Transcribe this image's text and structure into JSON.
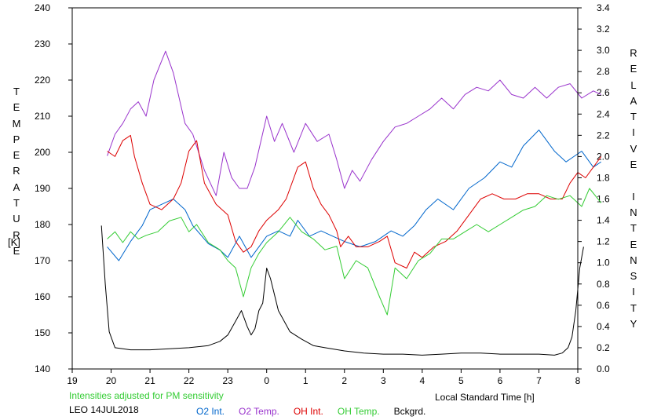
{
  "chart_data": {
    "type": "line",
    "x_axis": {
      "label": "Local Standard Time [h]",
      "range": [
        19,
        32
      ],
      "ticks": [
        19,
        20,
        21,
        22,
        23,
        24,
        25,
        26,
        27,
        28,
        29,
        30,
        31,
        32
      ],
      "tick_labels": [
        "19",
        "20",
        "21",
        "22",
        "23",
        "0",
        "1",
        "2",
        "3",
        "4",
        "5",
        "6",
        "7",
        "8"
      ]
    },
    "y_left": {
      "label_letters": [
        "T",
        "E",
        "M",
        "P",
        "E",
        "R",
        "A",
        "T",
        "U",
        "R",
        "E"
      ],
      "unit": "[K]",
      "range": [
        140,
        240
      ],
      "ticks": [
        140,
        150,
        160,
        170,
        180,
        190,
        200,
        210,
        220,
        230,
        240
      ]
    },
    "y_right": {
      "label_letters": [
        "R",
        "E",
        "L",
        "A",
        "T",
        "I",
        "V",
        "E",
        "",
        "I",
        "N",
        "T",
        "E",
        "N",
        "S",
        "I",
        "T",
        "Y"
      ],
      "range": [
        0.0,
        3.4
      ],
      "ticks": [
        0.0,
        0.2,
        0.4,
        0.6,
        0.8,
        1.0,
        1.2,
        1.4,
        1.6,
        1.8,
        2.0,
        2.2,
        2.4,
        2.6,
        2.8,
        3.0,
        3.2,
        3.4
      ],
      "tick_labels": [
        "0.0",
        "0.2",
        "0.4",
        "0.6",
        "0.8",
        "1.0",
        "1.2",
        "1.4",
        "1.6",
        "1.8",
        "2.0",
        "2.2",
        "2.4",
        "2.6",
        "2.8",
        "3.0",
        "3.2",
        "3.4"
      ]
    },
    "note": "Intensities adjusted for PM sensitivity",
    "station_date": "LEO 14JUL2018",
    "series": [
      {
        "name": "O2 Int.",
        "axis": "right",
        "color": "#0066cc",
        "points": [
          [
            19.9,
            1.15
          ],
          [
            20.2,
            1.02
          ],
          [
            20.5,
            1.2
          ],
          [
            20.8,
            1.35
          ],
          [
            21.0,
            1.5
          ],
          [
            21.3,
            1.55
          ],
          [
            21.6,
            1.6
          ],
          [
            21.9,
            1.5
          ],
          [
            22.1,
            1.35
          ],
          [
            22.5,
            1.18
          ],
          [
            22.8,
            1.12
          ],
          [
            23.0,
            1.05
          ],
          [
            23.3,
            1.25
          ],
          [
            23.6,
            1.05
          ],
          [
            23.8,
            1.15
          ],
          [
            24.0,
            1.25
          ],
          [
            24.3,
            1.3
          ],
          [
            24.6,
            1.25
          ],
          [
            24.8,
            1.4
          ],
          [
            25.1,
            1.25
          ],
          [
            25.4,
            1.3
          ],
          [
            25.7,
            1.25
          ],
          [
            26.0,
            1.2
          ],
          [
            26.4,
            1.15
          ],
          [
            26.8,
            1.2
          ],
          [
            27.2,
            1.3
          ],
          [
            27.5,
            1.25
          ],
          [
            27.8,
            1.35
          ],
          [
            28.1,
            1.5
          ],
          [
            28.4,
            1.6
          ],
          [
            28.8,
            1.5
          ],
          [
            29.2,
            1.7
          ],
          [
            29.6,
            1.8
          ],
          [
            30.0,
            1.95
          ],
          [
            30.3,
            1.9
          ],
          [
            30.6,
            2.1
          ],
          [
            31.0,
            2.25
          ],
          [
            31.4,
            2.05
          ],
          [
            31.7,
            1.95
          ],
          [
            31.9,
            2.0
          ],
          [
            32.1,
            2.05
          ],
          [
            32.4,
            1.9
          ],
          [
            32.6,
            1.95
          ]
        ]
      },
      {
        "name": "O2 Temp.",
        "axis": "left",
        "color": "#9933cc",
        "points": [
          [
            19.9,
            199
          ],
          [
            20.1,
            205
          ],
          [
            20.3,
            208
          ],
          [
            20.5,
            212
          ],
          [
            20.7,
            214
          ],
          [
            20.9,
            210
          ],
          [
            21.1,
            220
          ],
          [
            21.4,
            228
          ],
          [
            21.6,
            222
          ],
          [
            21.9,
            208
          ],
          [
            22.1,
            205
          ],
          [
            22.4,
            195
          ],
          [
            22.7,
            188
          ],
          [
            22.9,
            200
          ],
          [
            23.1,
            193
          ],
          [
            23.3,
            190
          ],
          [
            23.5,
            190
          ],
          [
            23.7,
            196
          ],
          [
            24.0,
            210
          ],
          [
            24.2,
            203
          ],
          [
            24.4,
            208
          ],
          [
            24.7,
            200
          ],
          [
            25.0,
            208
          ],
          [
            25.3,
            203
          ],
          [
            25.6,
            205
          ],
          [
            25.8,
            198
          ],
          [
            26.0,
            190
          ],
          [
            26.2,
            195
          ],
          [
            26.4,
            192
          ],
          [
            26.7,
            198
          ],
          [
            27.0,
            203
          ],
          [
            27.3,
            207
          ],
          [
            27.6,
            208
          ],
          [
            27.9,
            210
          ],
          [
            28.2,
            212
          ],
          [
            28.5,
            215
          ],
          [
            28.8,
            212
          ],
          [
            29.1,
            216
          ],
          [
            29.4,
            218
          ],
          [
            29.7,
            217
          ],
          [
            30.0,
            220
          ],
          [
            30.3,
            216
          ],
          [
            30.6,
            215
          ],
          [
            30.9,
            218
          ],
          [
            31.2,
            215
          ],
          [
            31.5,
            218
          ],
          [
            31.8,
            219
          ],
          [
            32.1,
            215
          ],
          [
            32.4,
            217
          ],
          [
            32.6,
            216
          ]
        ]
      },
      {
        "name": "OH Int.",
        "axis": "right",
        "color": "#dd0000",
        "points": [
          [
            19.9,
            2.05
          ],
          [
            20.1,
            2.0
          ],
          [
            20.3,
            2.15
          ],
          [
            20.5,
            2.2
          ],
          [
            20.6,
            2.0
          ],
          [
            20.8,
            1.75
          ],
          [
            21.0,
            1.55
          ],
          [
            21.3,
            1.5
          ],
          [
            21.6,
            1.6
          ],
          [
            21.8,
            1.75
          ],
          [
            22.0,
            2.05
          ],
          [
            22.2,
            2.15
          ],
          [
            22.4,
            1.75
          ],
          [
            22.7,
            1.55
          ],
          [
            23.0,
            1.45
          ],
          [
            23.2,
            1.2
          ],
          [
            23.4,
            1.1
          ],
          [
            23.6,
            1.15
          ],
          [
            23.8,
            1.3
          ],
          [
            24.0,
            1.4
          ],
          [
            24.3,
            1.5
          ],
          [
            24.5,
            1.6
          ],
          [
            24.8,
            1.9
          ],
          [
            25.0,
            1.95
          ],
          [
            25.2,
            1.7
          ],
          [
            25.4,
            1.55
          ],
          [
            25.6,
            1.45
          ],
          [
            25.8,
            1.3
          ],
          [
            25.9,
            1.15
          ],
          [
            26.1,
            1.25
          ],
          [
            26.3,
            1.15
          ],
          [
            26.6,
            1.15
          ],
          [
            26.9,
            1.2
          ],
          [
            27.1,
            1.25
          ],
          [
            27.3,
            1.0
          ],
          [
            27.6,
            0.95
          ],
          [
            27.8,
            1.1
          ],
          [
            28.0,
            1.05
          ],
          [
            28.3,
            1.15
          ],
          [
            28.6,
            1.2
          ],
          [
            28.9,
            1.3
          ],
          [
            29.2,
            1.45
          ],
          [
            29.5,
            1.6
          ],
          [
            29.8,
            1.65
          ],
          [
            30.1,
            1.6
          ],
          [
            30.4,
            1.6
          ],
          [
            30.7,
            1.65
          ],
          [
            31.0,
            1.65
          ],
          [
            31.3,
            1.6
          ],
          [
            31.6,
            1.6
          ],
          [
            31.8,
            1.75
          ],
          [
            32.0,
            1.85
          ],
          [
            32.2,
            1.8
          ],
          [
            32.4,
            1.9
          ],
          [
            32.6,
            2.0
          ]
        ]
      },
      {
        "name": "OH Temp.",
        "axis": "left",
        "color": "#33cc33",
        "points": [
          [
            19.9,
            176
          ],
          [
            20.1,
            178
          ],
          [
            20.3,
            175
          ],
          [
            20.5,
            178
          ],
          [
            20.7,
            176
          ],
          [
            20.9,
            177
          ],
          [
            21.2,
            178
          ],
          [
            21.5,
            181
          ],
          [
            21.8,
            182
          ],
          [
            22.0,
            178
          ],
          [
            22.2,
            180
          ],
          [
            22.5,
            175
          ],
          [
            22.8,
            173
          ],
          [
            23.0,
            170
          ],
          [
            23.2,
            168
          ],
          [
            23.4,
            160
          ],
          [
            23.6,
            168
          ],
          [
            23.8,
            172
          ],
          [
            24.0,
            175
          ],
          [
            24.3,
            178
          ],
          [
            24.6,
            182
          ],
          [
            24.9,
            178
          ],
          [
            25.2,
            176
          ],
          [
            25.5,
            173
          ],
          [
            25.8,
            174
          ],
          [
            26.0,
            165
          ],
          [
            26.3,
            170
          ],
          [
            26.6,
            168
          ],
          [
            26.9,
            160
          ],
          [
            27.1,
            155
          ],
          [
            27.3,
            168
          ],
          [
            27.6,
            165
          ],
          [
            27.9,
            170
          ],
          [
            28.2,
            172
          ],
          [
            28.5,
            176
          ],
          [
            28.8,
            176
          ],
          [
            29.1,
            178
          ],
          [
            29.4,
            180
          ],
          [
            29.7,
            178
          ],
          [
            30.0,
            180
          ],
          [
            30.3,
            182
          ],
          [
            30.6,
            184
          ],
          [
            30.9,
            185
          ],
          [
            31.2,
            188
          ],
          [
            31.5,
            187
          ],
          [
            31.8,
            188
          ],
          [
            32.1,
            185
          ],
          [
            32.3,
            190
          ],
          [
            32.6,
            186
          ]
        ]
      },
      {
        "name": "Bckgrd.",
        "axis": "right",
        "color": "#000000",
        "points": [
          [
            19.75,
            1.35
          ],
          [
            19.85,
            0.8
          ],
          [
            19.95,
            0.35
          ],
          [
            20.1,
            0.2
          ],
          [
            20.5,
            0.18
          ],
          [
            21.0,
            0.18
          ],
          [
            21.5,
            0.19
          ],
          [
            22.0,
            0.2
          ],
          [
            22.5,
            0.22
          ],
          [
            22.8,
            0.26
          ],
          [
            23.0,
            0.32
          ],
          [
            23.2,
            0.45
          ],
          [
            23.35,
            0.55
          ],
          [
            23.5,
            0.4
          ],
          [
            23.6,
            0.32
          ],
          [
            23.7,
            0.38
          ],
          [
            23.8,
            0.55
          ],
          [
            23.9,
            0.62
          ],
          [
            24.0,
            0.95
          ],
          [
            24.1,
            0.85
          ],
          [
            24.3,
            0.55
          ],
          [
            24.6,
            0.35
          ],
          [
            24.9,
            0.28
          ],
          [
            25.2,
            0.22
          ],
          [
            25.5,
            0.2
          ],
          [
            26.0,
            0.17
          ],
          [
            26.5,
            0.15
          ],
          [
            27.0,
            0.14
          ],
          [
            27.5,
            0.14
          ],
          [
            28.0,
            0.13
          ],
          [
            28.5,
            0.14
          ],
          [
            29.0,
            0.15
          ],
          [
            29.5,
            0.15
          ],
          [
            30.0,
            0.14
          ],
          [
            30.5,
            0.14
          ],
          [
            31.0,
            0.14
          ],
          [
            31.4,
            0.13
          ],
          [
            31.6,
            0.15
          ],
          [
            31.75,
            0.2
          ],
          [
            31.85,
            0.3
          ],
          [
            31.95,
            0.55
          ],
          [
            32.05,
            0.95
          ],
          [
            32.15,
            1.15
          ]
        ]
      }
    ]
  }
}
